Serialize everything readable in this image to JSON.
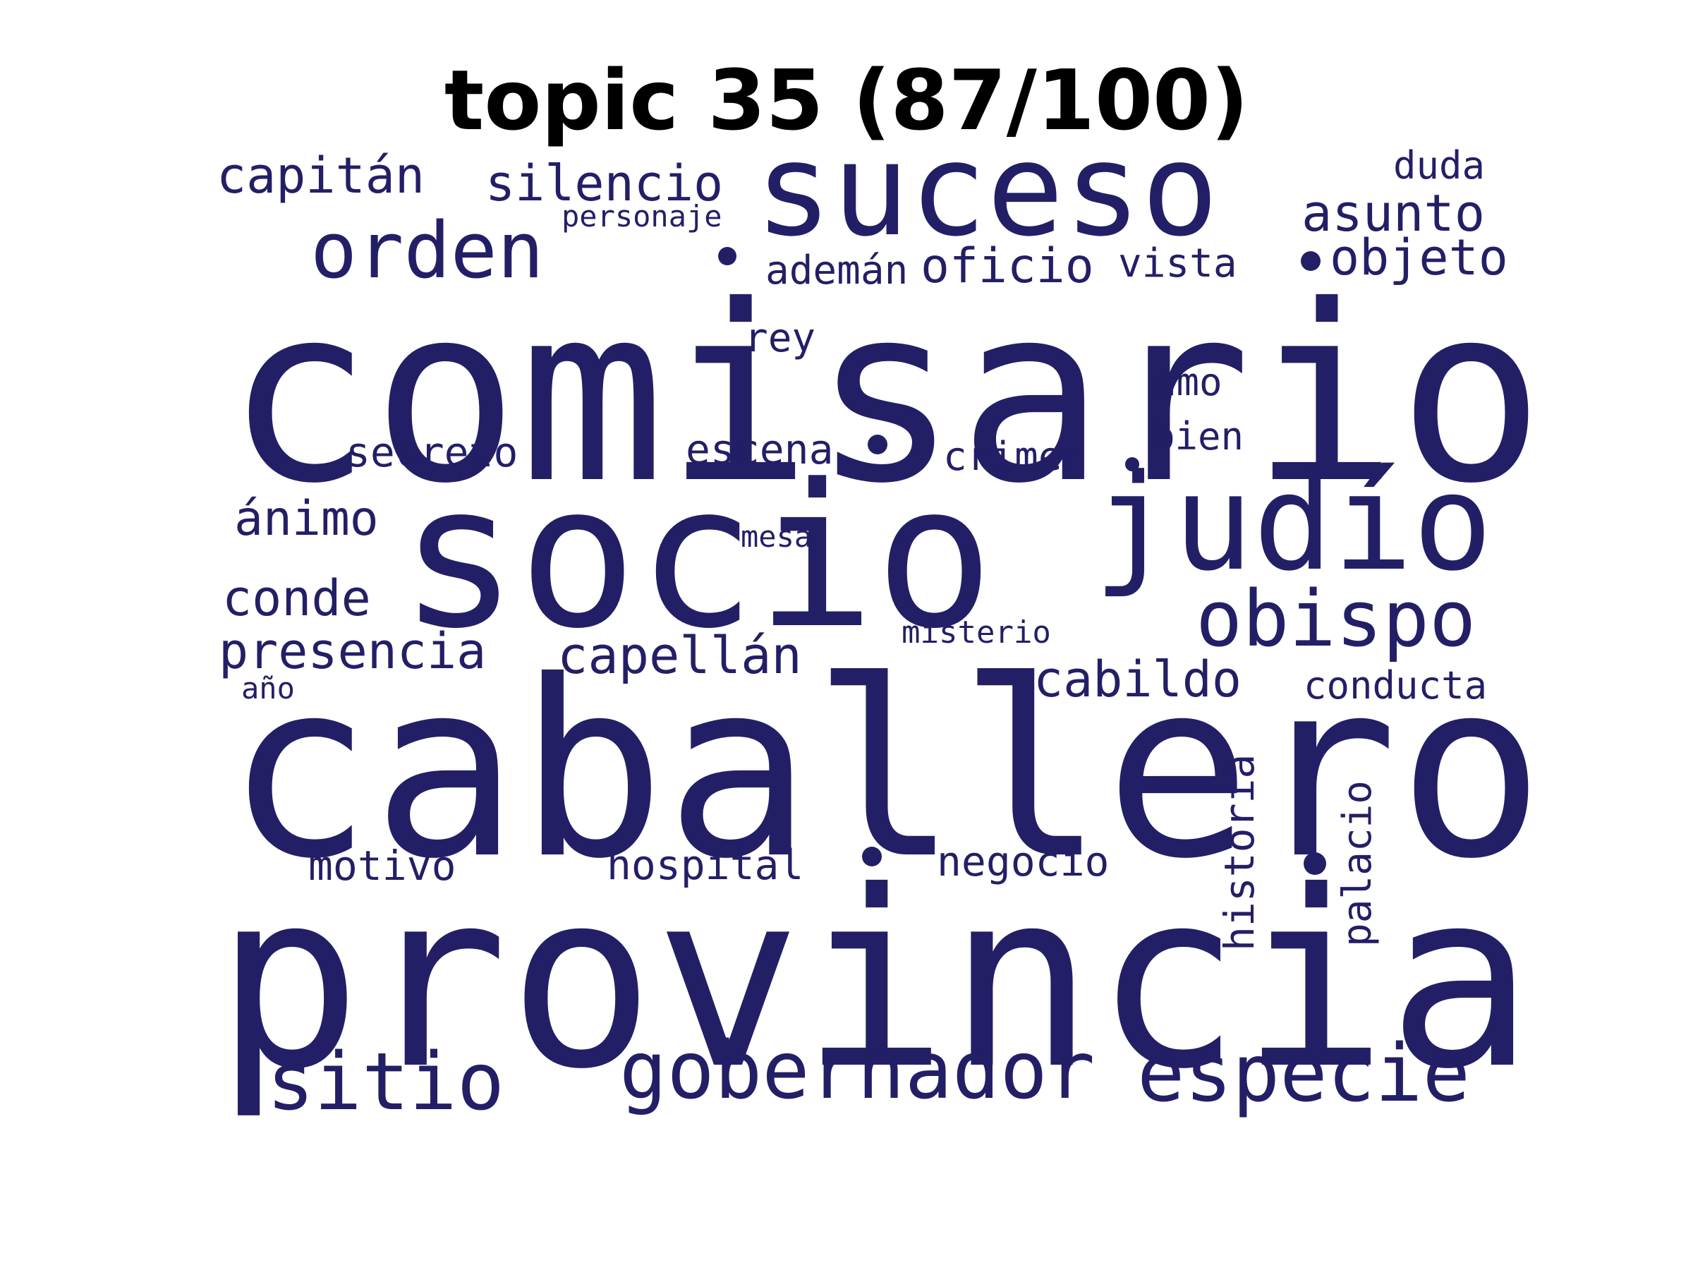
{
  "title": "topic 35 (87/100)",
  "colors": {
    "word": "#231f66",
    "title": "#000000",
    "background": "#ffffff"
  },
  "words": [
    "comisario",
    "socio",
    "caballero",
    "provincia",
    "suceso",
    "judío",
    "orden",
    "obispo",
    "gobernador",
    "especie",
    "sitio",
    "capitán",
    "silencio",
    "asunto",
    "objeto",
    "oficio",
    "ademán",
    "vista",
    "personaje",
    "duda",
    "rey",
    "amo",
    "bien",
    "secreto",
    "escena",
    "crimen",
    "ánimo",
    "mesa",
    "conde",
    "presencia",
    "capellán",
    "misterio",
    "cabildo",
    "conducta",
    "año",
    "motivo",
    "hospital",
    "negocio",
    "historia",
    "palacio"
  ]
}
